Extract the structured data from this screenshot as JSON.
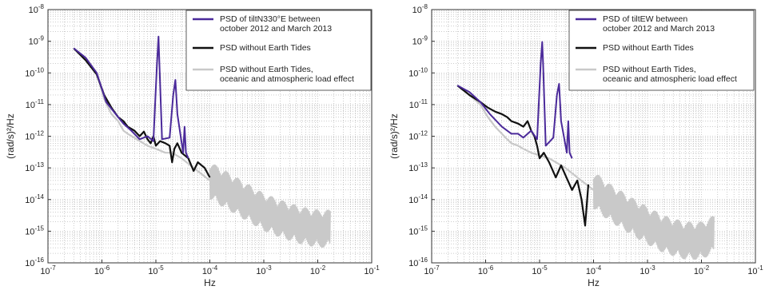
{
  "chart_data": [
    {
      "type": "line",
      "xlabel": "Hz",
      "ylabel": "(rad/s)²/Hz",
      "xscale": "log",
      "yscale": "log",
      "xlim": [
        1e-07,
        0.1
      ],
      "ylim": [
        1e-16,
        1e-08
      ],
      "grid": true,
      "legend_position": "top-right",
      "xticks": [
        {
          "value": 1e-07,
          "base": "10",
          "exp": "-7"
        },
        {
          "value": 1e-06,
          "base": "10",
          "exp": "-6"
        },
        {
          "value": 1e-05,
          "base": "10",
          "exp": "-5"
        },
        {
          "value": 0.0001,
          "base": "10",
          "exp": "-4"
        },
        {
          "value": 0.001,
          "base": "10",
          "exp": "-3"
        },
        {
          "value": 0.01,
          "base": "10",
          "exp": "-2"
        },
        {
          "value": 0.1,
          "base": "10",
          "exp": "-1"
        }
      ],
      "yticks": [
        {
          "value": 1e-08,
          "base": "10",
          "exp": "-8"
        },
        {
          "value": 1e-09,
          "base": "10",
          "exp": "-9"
        },
        {
          "value": 1e-10,
          "base": "10",
          "exp": "-10"
        },
        {
          "value": 1e-11,
          "base": "10",
          "exp": "-11"
        },
        {
          "value": 1e-12,
          "base": "10",
          "exp": "-12"
        },
        {
          "value": 1e-13,
          "base": "10",
          "exp": "-13"
        },
        {
          "value": 1e-14,
          "base": "10",
          "exp": "-14"
        },
        {
          "value": 1e-15,
          "base": "10",
          "exp": "-15"
        },
        {
          "value": 1e-16,
          "base": "10",
          "exp": "-16"
        }
      ],
      "series": [
        {
          "name": [
            "PSD of tiltN330°E between",
            "october 2012 and March 2013"
          ],
          "color": "#4b2a9a",
          "x": [
            3e-07,
            5e-07,
            8e-07,
            1.2e-06,
            1.8e-06,
            2.5e-06,
            3.5e-06,
            5e-06,
            7e-06,
            9e-06,
            1.05e-05,
            1.12e-05,
            1.16e-05,
            1.3e-05,
            1.8e-05,
            2.1e-05,
            2.3e-05,
            2.5e-05,
            3.2e-05,
            3.4e-05,
            3.6e-05,
            4e-05
          ],
          "y": [
            6e-10,
            3e-10,
            1e-10,
            1.2e-11,
            5e-12,
            2.5e-12,
            1.5e-12,
            8e-13,
            1e-12,
            7e-13,
            2e-10,
            1.4e-09,
            2e-10,
            8e-13,
            9e-13,
            2e-11,
            6e-11,
            5e-12,
            3e-13,
            2e-12,
            3e-13,
            2e-13
          ]
        },
        {
          "name": [
            "PSD without Earth Tides"
          ],
          "color": "#111111",
          "x": [
            3e-07,
            5e-07,
            8e-07,
            1.1e-06,
            1.5e-06,
            2e-06,
            2.5e-06,
            3e-06,
            4e-06,
            5e-06,
            6e-06,
            7e-06,
            8e-06,
            9e-06,
            1e-05,
            1.2e-05,
            1.5e-05,
            1.8e-05,
            2e-05,
            2.2e-05,
            2.5e-05,
            3e-05,
            4e-05,
            5e-05,
            6e-05,
            8e-05,
            0.0001
          ],
          "y": [
            6e-10,
            2.5e-10,
            9e-11,
            2e-11,
            8e-12,
            4e-12,
            3e-12,
            2e-12,
            1.5e-12,
            1e-12,
            1.4e-12,
            8e-13,
            6e-13,
            1e-12,
            5e-13,
            7e-13,
            6e-13,
            5e-13,
            1.5e-13,
            4e-13,
            6e-13,
            3e-13,
            2e-13,
            8e-14,
            1.5e-13,
            1e-13,
            5e-14
          ]
        },
        {
          "name": [
            "PSD without Earth Tides,",
            "oceanic and atmospheric load effect"
          ],
          "color": "#c9c9c9",
          "x": [
            3e-07,
            5e-07,
            8e-07,
            1.1e-06,
            1.5e-06,
            2e-06,
            2.5e-06,
            3e-06,
            4e-06,
            5e-06,
            7e-06,
            1e-05,
            1.5e-05,
            2e-05,
            3e-05,
            5e-05,
            0.0001,
            0.0002,
            0.0005,
            0.001,
            0.002,
            0.005,
            0.01,
            0.017
          ],
          "y": [
            6e-10,
            3e-10,
            1e-10,
            1.5e-11,
            5e-12,
            3e-12,
            1.5e-12,
            1.2e-12,
            9e-13,
            7e-13,
            5e-13,
            4e-13,
            3e-13,
            3e-13,
            2e-13,
            1e-13,
            4e-14,
            2e-14,
            8e-15,
            4e-15,
            2.5e-15,
            1.5e-15,
            1.2e-15,
            1.2e-15
          ]
        }
      ]
    },
    {
      "type": "line",
      "xlabel": "Hz",
      "ylabel": "(rad/s)²/Hz",
      "xscale": "log",
      "yscale": "log",
      "xlim": [
        1e-07,
        0.1
      ],
      "ylim": [
        1e-16,
        1e-08
      ],
      "grid": true,
      "legend_position": "top-right",
      "xticks": [
        {
          "value": 1e-07,
          "base": "10",
          "exp": "-7"
        },
        {
          "value": 1e-06,
          "base": "10",
          "exp": "-6"
        },
        {
          "value": 1e-05,
          "base": "10",
          "exp": "-5"
        },
        {
          "value": 0.0001,
          "base": "10",
          "exp": "-4"
        },
        {
          "value": 0.001,
          "base": "10",
          "exp": "-3"
        },
        {
          "value": 0.01,
          "base": "10",
          "exp": "-2"
        },
        {
          "value": 0.1,
          "base": "10",
          "exp": "-1"
        }
      ],
      "yticks": [
        {
          "value": 1e-08,
          "base": "10",
          "exp": "-8"
        },
        {
          "value": 1e-09,
          "base": "10",
          "exp": "-9"
        },
        {
          "value": 1e-10,
          "base": "10",
          "exp": "-10"
        },
        {
          "value": 1e-11,
          "base": "10",
          "exp": "-11"
        },
        {
          "value": 1e-12,
          "base": "10",
          "exp": "-12"
        },
        {
          "value": 1e-13,
          "base": "10",
          "exp": "-13"
        },
        {
          "value": 1e-14,
          "base": "10",
          "exp": "-14"
        },
        {
          "value": 1e-15,
          "base": "10",
          "exp": "-15"
        },
        {
          "value": 1e-16,
          "base": "10",
          "exp": "-16"
        }
      ],
      "series": [
        {
          "name": [
            "PSD of tiltEW between",
            "october 2012 and March 2013"
          ],
          "color": "#4b2a9a",
          "x": [
            3e-07,
            5e-07,
            8e-07,
            1.2e-06,
            2e-06,
            3e-06,
            4e-06,
            5e-06,
            7e-06,
            9e-06,
            1.05e-05,
            1.12e-05,
            1.16e-05,
            1.3e-05,
            1.8e-05,
            2.1e-05,
            2.3e-05,
            2.5e-05,
            3.2e-05,
            3.4e-05,
            3.6e-05,
            4e-05
          ],
          "y": [
            4e-11,
            2.5e-11,
            1.2e-11,
            5e-12,
            2e-12,
            1.2e-12,
            1.2e-12,
            9e-13,
            1.5e-12,
            8e-13,
            2e-10,
            9.5e-10,
            2e-10,
            5e-13,
            9e-13,
            2e-11,
            4.5e-11,
            3e-12,
            3e-13,
            3e-12,
            3e-13,
            2e-13
          ]
        },
        {
          "name": [
            "PSD without Earth Tides"
          ],
          "color": "#111111",
          "x": [
            3e-07,
            5e-07,
            8e-07,
            1.1e-06,
            1.5e-06,
            2e-06,
            2.5e-06,
            3e-06,
            4e-06,
            5e-06,
            6e-06,
            7e-06,
            8e-06,
            9e-06,
            1e-05,
            1.2e-05,
            1.5e-05,
            2e-05,
            2.5e-05,
            3e-05,
            4e-05,
            5e-05,
            6e-05,
            7e-05,
            8e-05
          ],
          "y": [
            4e-11,
            2e-11,
            1.2e-11,
            8e-12,
            6e-12,
            5e-12,
            4e-12,
            3e-12,
            2.5e-12,
            2e-12,
            3e-12,
            1.5e-12,
            1e-12,
            5e-13,
            2e-13,
            3e-13,
            1.5e-13,
            5e-14,
            1.2e-13,
            6e-14,
            2e-14,
            4e-14,
            1e-14,
            1.5e-15,
            3e-14
          ]
        },
        {
          "name": [
            "PSD without Earth Tides,",
            "oceanic and atmospheric load effect"
          ],
          "color": "#c9c9c9",
          "x": [
            3e-07,
            5e-07,
            8e-07,
            1.1e-06,
            1.5e-06,
            2e-06,
            2.5e-06,
            3e-06,
            4e-06,
            5e-06,
            7e-06,
            1e-05,
            1.5e-05,
            2e-05,
            3e-05,
            5e-05,
            0.0001,
            0.0002,
            0.0005,
            0.001,
            0.002,
            0.005,
            0.01,
            0.017
          ],
          "y": [
            4e-11,
            2e-11,
            1e-11,
            4e-12,
            2e-12,
            1.2e-12,
            8e-13,
            6e-13,
            5e-13,
            4e-13,
            3e-13,
            2.5e-13,
            2e-13,
            1.5e-13,
            1e-13,
            5e-14,
            2e-14,
            8e-15,
            3e-15,
            1.5e-15,
            8e-16,
            5e-16,
            5e-16,
            8e-16
          ]
        }
      ]
    }
  ]
}
